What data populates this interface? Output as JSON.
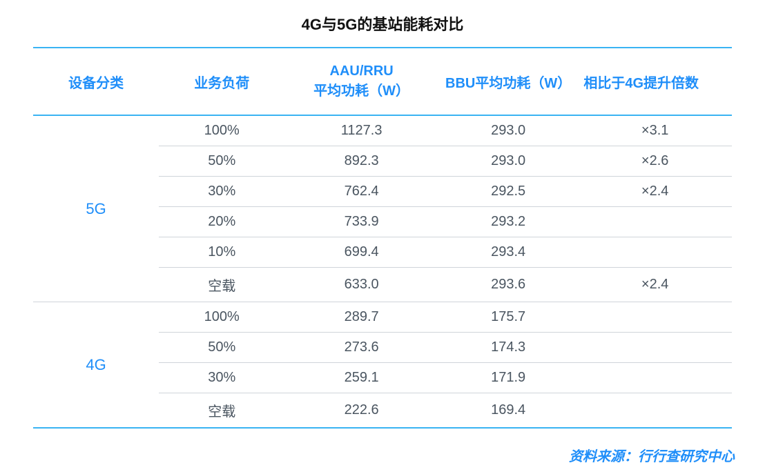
{
  "title": "4G与5G的基站能耗对比",
  "title_fontsize": 22,
  "title_color": "#111111",
  "colors": {
    "header_text": "#1f8ef9",
    "body_text": "#4a5560",
    "accent": "#39b3f3",
    "thin_rule": "#cfd4d9",
    "source_text": "#1f8ef9",
    "background": "#ffffff"
  },
  "fontsize": {
    "header": 20,
    "body": 20,
    "rowlabel": 22,
    "source": 20
  },
  "columns": [
    "设备分类",
    "业务负荷",
    "AAU/RRU\n平均功耗（W）",
    "BBU平均功耗（W）",
    "相比于4G提升倍数"
  ],
  "column_align": [
    "center",
    "center",
    "center",
    "center",
    "left"
  ],
  "groups": [
    {
      "label": "5G",
      "rows": [
        {
          "load": "100%",
          "aau": "1127.3",
          "bbu": "293.0",
          "mult": "×3.1"
        },
        {
          "load": "50%",
          "aau": "892.3",
          "bbu": "293.0",
          "mult": "×2.6"
        },
        {
          "load": "30%",
          "aau": "762.4",
          "bbu": "292.5",
          "mult": "×2.4"
        },
        {
          "load": "20%",
          "aau": "733.9",
          "bbu": "293.2",
          "mult": ""
        },
        {
          "load": "10%",
          "aau": "699.4",
          "bbu": "293.4",
          "mult": ""
        },
        {
          "load": "空载",
          "aau": "633.0",
          "bbu": "293.6",
          "mult": "×2.4"
        }
      ]
    },
    {
      "label": "4G",
      "rows": [
        {
          "load": "100%",
          "aau": "289.7",
          "bbu": "175.7",
          "mult": ""
        },
        {
          "load": "50%",
          "aau": "273.6",
          "bbu": "174.3",
          "mult": ""
        },
        {
          "load": "30%",
          "aau": "259.1",
          "bbu": "171.9",
          "mult": ""
        },
        {
          "load": "空载",
          "aau": "222.6",
          "bbu": "169.4",
          "mult": ""
        }
      ]
    }
  ],
  "source": "资料来源：行行查研究中心"
}
